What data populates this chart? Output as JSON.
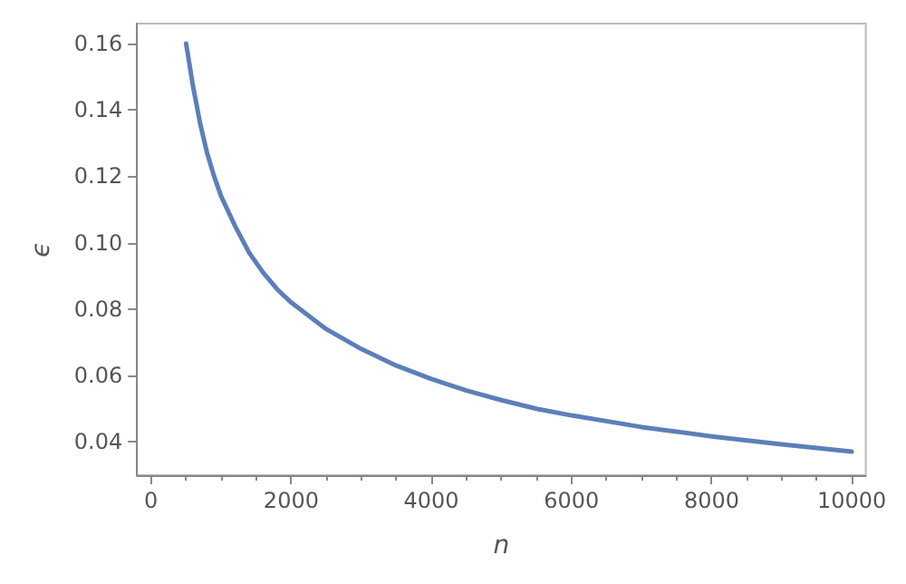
{
  "chart_data": {
    "type": "line",
    "xlabel": "n",
    "ylabel": "ϵ",
    "x": [
      500,
      600,
      700,
      800,
      900,
      1000,
      1200,
      1400,
      1600,
      1800,
      2000,
      2500,
      3000,
      3500,
      4000,
      4500,
      5000,
      5500,
      6000,
      7000,
      8000,
      9000,
      10000
    ],
    "series": [
      {
        "color": "#5b7fb9",
        "values": [
          0.16,
          0.147,
          0.136,
          0.127,
          0.12,
          0.114,
          0.105,
          0.097,
          0.091,
          0.086,
          0.082,
          0.074,
          0.068,
          0.063,
          0.059,
          0.0555,
          0.0526,
          0.05,
          0.048,
          0.0445,
          0.0417,
          0.0393,
          0.0371
        ]
      }
    ],
    "xlim": [
      -200,
      10200
    ],
    "xticks": [
      0,
      2000,
      4000,
      6000,
      8000,
      10000
    ],
    "ylim": [
      0.03,
      0.166
    ],
    "yticks": [
      0.04,
      0.06,
      0.08,
      {
        "value": 0.1,
        "label": "0.10"
      },
      0.12,
      0.14,
      0.16
    ],
    "grid": false,
    "marker": "none",
    "line_style": "solid"
  }
}
